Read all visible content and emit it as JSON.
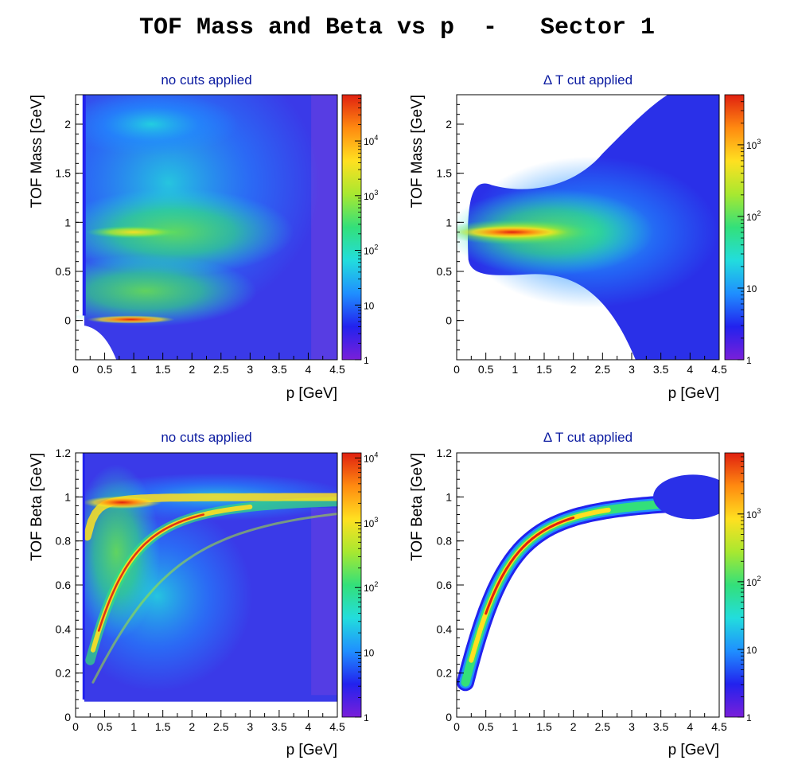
{
  "title": "TOF Mass and Beta vs p  -   Sector 1",
  "colorbar_colors": [
    "#7a1fd9",
    "#2222ee",
    "#1f8fff",
    "#22dddd",
    "#33e07a",
    "#a8e830",
    "#ffe020",
    "#ff8a10",
    "#e02010"
  ],
  "chart_data": [
    {
      "type": "heatmap",
      "title": "no cuts applied",
      "xlabel": "p  [GeV]",
      "ylabel": "TOF Mass  [GeV]",
      "xlim": [
        0,
        4.5
      ],
      "ylim": [
        -0.4,
        2.3
      ],
      "xticks": [
        "0",
        "0.5",
        "1",
        "1.5",
        "2",
        "2.5",
        "3",
        "3.5",
        "4",
        "4.5"
      ],
      "yticks": [
        "0",
        "0.5",
        "1",
        "1.5",
        "2"
      ],
      "colorbar": {
        "scale": "log",
        "range": [
          1,
          70000
        ],
        "labels": [
          {
            "text": "1",
            "exp": ""
          },
          {
            "text": "10",
            "exp": ""
          },
          {
            "text": "10",
            "exp": "2"
          },
          {
            "text": "10",
            "exp": "3"
          },
          {
            "text": "10",
            "exp": "4"
          }
        ]
      },
      "features": [
        {
          "desc": "pion band",
          "mass": 0.0,
          "p_range": [
            0.2,
            1.8
          ],
          "peak_p": 0.8
        },
        {
          "desc": "proton band",
          "mass": 0.9,
          "p_range": [
            0.2,
            3.0
          ],
          "peak_p": 0.8
        }
      ]
    },
    {
      "type": "heatmap",
      "title": "Δ T cut applied",
      "xlabel": "p  [GeV]",
      "ylabel": "TOF Mass  [GeV]",
      "xlim": [
        0,
        4.5
      ],
      "ylim": [
        -0.4,
        2.3
      ],
      "xticks": [
        "0",
        "0.5",
        "1",
        "1.5",
        "2",
        "2.5",
        "3",
        "3.5",
        "4",
        "4.5"
      ],
      "yticks": [
        "0",
        "0.5",
        "1",
        "1.5",
        "2"
      ],
      "colorbar": {
        "scale": "log",
        "range": [
          1,
          5000
        ],
        "labels": [
          {
            "text": "1",
            "exp": ""
          },
          {
            "text": "10",
            "exp": ""
          },
          {
            "text": "10",
            "exp": "2"
          },
          {
            "text": "10",
            "exp": "3"
          }
        ]
      },
      "features": [
        {
          "desc": "proton band",
          "mass": 0.9,
          "p_range": [
            0.2,
            3.0
          ],
          "peak_p": 0.8
        }
      ]
    },
    {
      "type": "heatmap",
      "title": "no cuts applied",
      "xlabel": "p  [GeV]",
      "ylabel": "TOF Beta  [GeV]",
      "xlim": [
        0,
        4.5
      ],
      "ylim": [
        0,
        1.2
      ],
      "xticks": [
        "0",
        "0.5",
        "1",
        "1.5",
        "2",
        "2.5",
        "3",
        "3.5",
        "4",
        "4.5"
      ],
      "yticks": [
        "0",
        "0.2",
        "0.4",
        "0.6",
        "0.8",
        "1",
        "1.2"
      ],
      "colorbar": {
        "scale": "log",
        "range": [
          1,
          12000
        ],
        "labels": [
          {
            "text": "1",
            "exp": ""
          },
          {
            "text": "10",
            "exp": ""
          },
          {
            "text": "10",
            "exp": "2"
          },
          {
            "text": "10",
            "exp": "3"
          },
          {
            "text": "10",
            "exp": "4"
          }
        ]
      },
      "features": [
        {
          "desc": "pion band",
          "beta_formula": "p/sqrt(p^2+m^2)",
          "m": 0.14
        },
        {
          "desc": "proton band",
          "beta_formula": "p/sqrt(p^2+m^2)",
          "m": 0.938
        },
        {
          "desc": "deuteron band",
          "beta_formula": "p/sqrt(p^2+m^2)",
          "m": 1.876
        }
      ]
    },
    {
      "type": "heatmap",
      "title": "Δ T cut applied",
      "xlabel": "p  [GeV]",
      "ylabel": "TOF Beta  [GeV]",
      "xlim": [
        0,
        4.5
      ],
      "ylim": [
        0,
        1.2
      ],
      "xticks": [
        "0",
        "0.5",
        "1",
        "1.5",
        "2",
        "2.5",
        "3",
        "3.5",
        "4",
        "4.5"
      ],
      "yticks": [
        "0",
        "0.2",
        "0.4",
        "0.6",
        "0.8",
        "1",
        "1.2"
      ],
      "colorbar": {
        "scale": "log",
        "range": [
          1,
          8000
        ],
        "labels": [
          {
            "text": "1",
            "exp": ""
          },
          {
            "text": "10",
            "exp": ""
          },
          {
            "text": "10",
            "exp": "2"
          },
          {
            "text": "10",
            "exp": "3"
          }
        ]
      },
      "features": [
        {
          "desc": "proton band",
          "beta_formula": "p/sqrt(p^2+m^2)",
          "m": 0.938
        }
      ]
    }
  ]
}
